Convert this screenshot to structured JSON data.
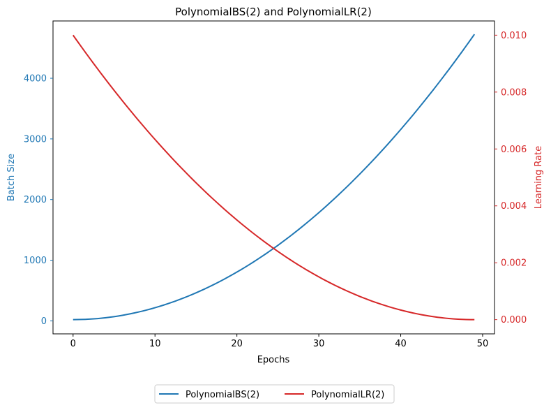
{
  "chart_data": {
    "type": "line",
    "title": "PolynomialBS(2) and PolynomialLR(2)",
    "xlabel": "Epochs",
    "ylabel_left": "Batch Size",
    "ylabel_right": "Learning Rate",
    "xlim": [
      -2.45,
      51.45
    ],
    "ylim_left": [
      -215,
      4945
    ],
    "ylim_right": [
      -0.0005,
      0.0105
    ],
    "x_ticks": [
      0,
      10,
      20,
      30,
      40,
      50
    ],
    "x_tick_labels": [
      "0",
      "10",
      "20",
      "30",
      "40",
      "50"
    ],
    "y_left_ticks": [
      0,
      1000,
      2000,
      3000,
      4000
    ],
    "y_left_tick_labels": [
      "0",
      "1000",
      "2000",
      "3000",
      "4000"
    ],
    "y_right_ticks": [
      0,
      0.002,
      0.004,
      0.006,
      0.008,
      0.01
    ],
    "y_right_tick_labels": [
      "0.000",
      "0.002",
      "0.004",
      "0.006",
      "0.008",
      "0.010"
    ],
    "colors": {
      "left_axis": "#1f77b4",
      "right_axis": "#d62728"
    },
    "series": [
      {
        "name": "PolynomialBS(2)",
        "axis": "left",
        "color": "#1f77b4",
        "formula": "y = 20 + (4725 - 20) * (x / 49)^2",
        "x_start": 0,
        "x_end": 49,
        "y_start": 20,
        "y_end": 4725
      },
      {
        "name": "PolynomialLR(2)",
        "axis": "right",
        "color": "#d62728",
        "formula": "y = 0.01 * (1 - x / 49)^2",
        "x_start": 0,
        "x_end": 49,
        "y_start": 0.01,
        "y_end": 0.0
      }
    ],
    "legend": {
      "placement": "bottom-center",
      "ncol": 2,
      "entries": [
        "PolynomialBS(2)",
        "PolynomialLR(2)"
      ]
    }
  }
}
